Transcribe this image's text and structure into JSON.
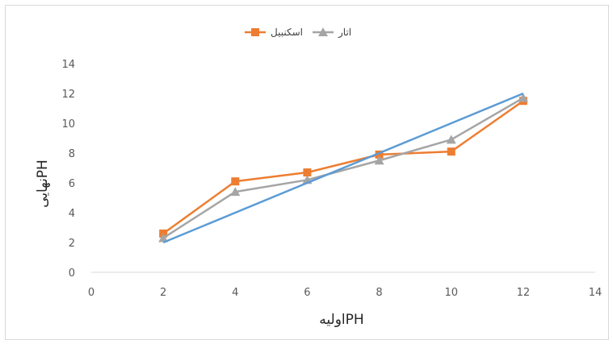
{
  "chart_data": {
    "type": "line",
    "title": "",
    "xlabel": "اولیهPH",
    "ylabel": "نهاییPH",
    "xlim": [
      0,
      14
    ],
    "ylim": [
      0,
      14
    ],
    "x_ticks": [
      0,
      2,
      4,
      6,
      8,
      10,
      12,
      14
    ],
    "y_ticks": [
      0,
      2,
      4,
      6,
      8,
      10,
      12,
      14
    ],
    "grid": false,
    "legend_position": "top",
    "series": [
      {
        "name": "اسکنبیل",
        "color": "#ED7D31",
        "marker": "square",
        "x": [
          2,
          4,
          6,
          8,
          10,
          12
        ],
        "y": [
          2.6,
          6.1,
          6.7,
          7.9,
          8.1,
          11.5
        ]
      },
      {
        "name": "اتار",
        "color": "#A5A5A5",
        "marker": "triangle",
        "x": [
          2,
          4,
          6,
          8,
          10,
          12
        ],
        "y": [
          2.3,
          5.4,
          6.2,
          7.5,
          8.9,
          11.7
        ]
      },
      {
        "name": "",
        "color": "#5B9BD5",
        "marker": "none",
        "show_in_legend": false,
        "x": [
          2,
          4,
          6,
          8,
          10,
          12
        ],
        "y": [
          2.0,
          4.0,
          6.0,
          8.0,
          10.0,
          12.0
        ]
      }
    ]
  }
}
